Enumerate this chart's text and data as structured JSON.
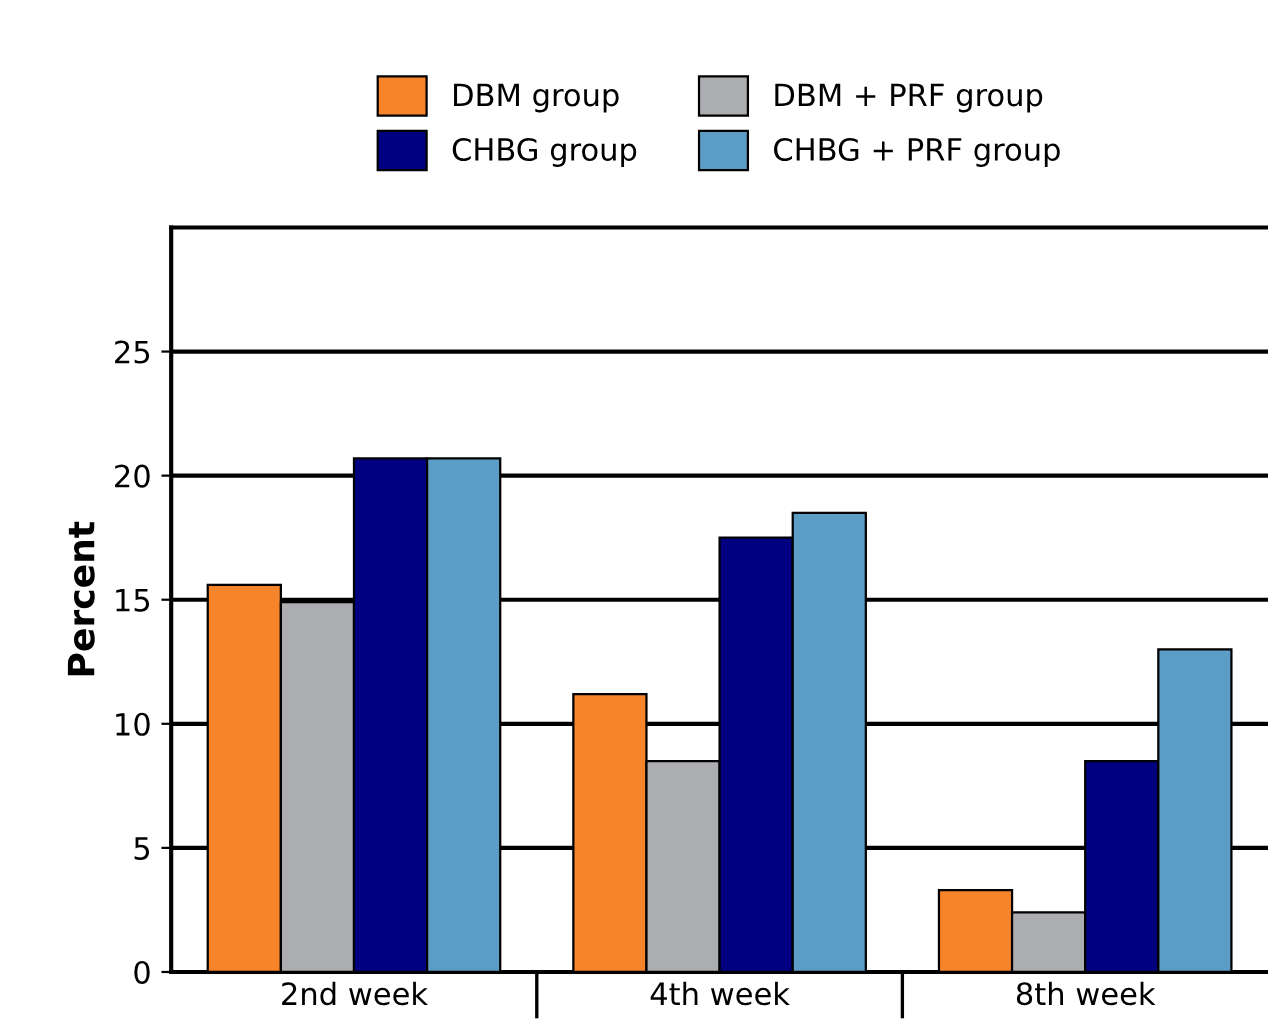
{
  "chart_data": {
    "type": "bar",
    "ylabel": "Percent",
    "categories": [
      "2nd week",
      "4th week",
      "8th week"
    ],
    "series": [
      {
        "name": "DBM group",
        "color": "#f5842a",
        "values": [
          15.6,
          11.2,
          3.3
        ]
      },
      {
        "name": "DBM + PRF group",
        "color": "#acadb0",
        "values": [
          14.9,
          8.5,
          2.4
        ]
      },
      {
        "name": "CHBG group",
        "color": "#000080",
        "values": [
          20.7,
          17.5,
          8.5
        ]
      },
      {
        "name": "CHBG + PRF group",
        "color": "#5b9dc4",
        "values": [
          20.7,
          18.5,
          13.0
        ]
      }
    ],
    "ylim": [
      0,
      30
    ],
    "yticks": [
      0,
      5,
      10,
      15,
      20,
      25
    ],
    "grid": "y",
    "legend": "top"
  }
}
